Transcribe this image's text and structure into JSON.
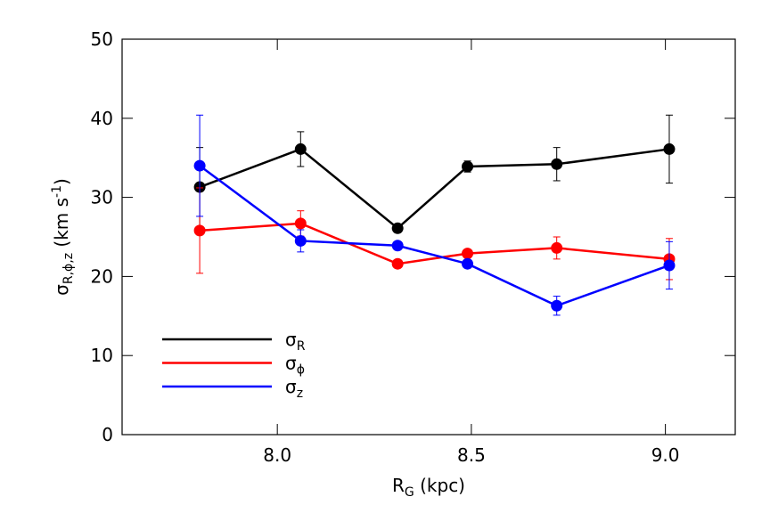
{
  "chart_data": {
    "type": "line",
    "x_label": {
      "main": "R",
      "sub": "G",
      "rest": " (kpc)"
    },
    "y_label": {
      "main": "σ",
      "sub": "R,ϕ,z",
      "rest": " (km s",
      "sup": "-1",
      "end": ")"
    },
    "x": [
      7.8,
      8.06,
      8.31,
      8.49,
      8.72,
      9.01
    ],
    "series": [
      {
        "name": "σ",
        "subscript": "R",
        "color": "#000000",
        "values": [
          31.3,
          36.1,
          26.1,
          33.9,
          34.2,
          36.1
        ],
        "errors": [
          5.0,
          2.2,
          0.5,
          0.7,
          2.1,
          4.3
        ]
      },
      {
        "name": "σ",
        "subscript": "ϕ",
        "color": "#ff0000",
        "values": [
          25.8,
          26.7,
          21.6,
          22.9,
          23.6,
          22.2
        ],
        "errors": [
          5.4,
          1.6,
          0.4,
          0.5,
          1.4,
          2.6
        ]
      },
      {
        "name": "σ",
        "subscript": "z",
        "color": "#0000ff",
        "values": [
          34.0,
          24.5,
          23.9,
          21.6,
          16.3,
          21.4
        ],
        "errors": [
          6.4,
          1.4,
          0.4,
          0.4,
          1.2,
          3.0
        ]
      }
    ],
    "xlim": [
      7.6,
      9.18
    ],
    "ylim": [
      0,
      50
    ],
    "xticks": [
      {
        "value": 8,
        "label": "8.0"
      },
      8.5,
      {
        "value": 9,
        "label": "9.0"
      }
    ],
    "yticks": [
      0,
      10,
      20,
      30,
      40,
      50
    ],
    "legend": "lower left"
  }
}
